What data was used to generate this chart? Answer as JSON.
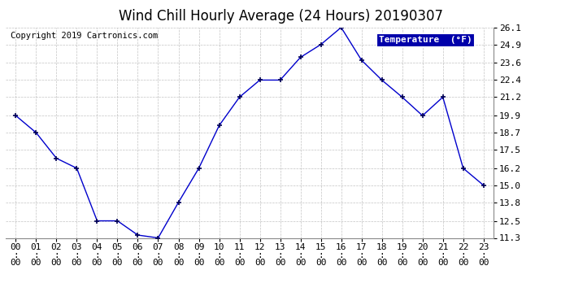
{
  "title": "Wind Chill Hourly Average (24 Hours) 20190307",
  "copyright": "Copyright 2019 Cartronics.com",
  "legend_label": "Temperature  (°F)",
  "hours": [
    "00:00",
    "01:00",
    "02:00",
    "03:00",
    "04:00",
    "05:00",
    "06:00",
    "07:00",
    "08:00",
    "09:00",
    "10:00",
    "11:00",
    "12:00",
    "13:00",
    "14:00",
    "15:00",
    "16:00",
    "17:00",
    "18:00",
    "19:00",
    "20:00",
    "21:00",
    "22:00",
    "23:00"
  ],
  "values": [
    19.9,
    18.7,
    16.9,
    16.2,
    12.5,
    12.5,
    11.5,
    11.3,
    13.8,
    16.2,
    19.2,
    21.2,
    22.4,
    22.4,
    24.0,
    24.9,
    26.1,
    23.8,
    22.4,
    21.2,
    19.9,
    21.2,
    16.2,
    15.0
  ],
  "ylim": [
    11.3,
    26.1
  ],
  "yticks": [
    11.3,
    12.5,
    13.8,
    15.0,
    16.2,
    17.5,
    18.7,
    19.9,
    21.2,
    22.4,
    23.6,
    24.9,
    26.1
  ],
  "line_color": "#0000cc",
  "marker_color": "#000055",
  "bg_color": "#ffffff",
  "plot_bg_color": "#ffffff",
  "grid_color": "#aaaaaa",
  "title_fontsize": 12,
  "copyright_fontsize": 7.5,
  "tick_fontsize": 8,
  "legend_bg": "#0000aa",
  "legend_fg": "#ffffff",
  "legend_fontsize": 8
}
